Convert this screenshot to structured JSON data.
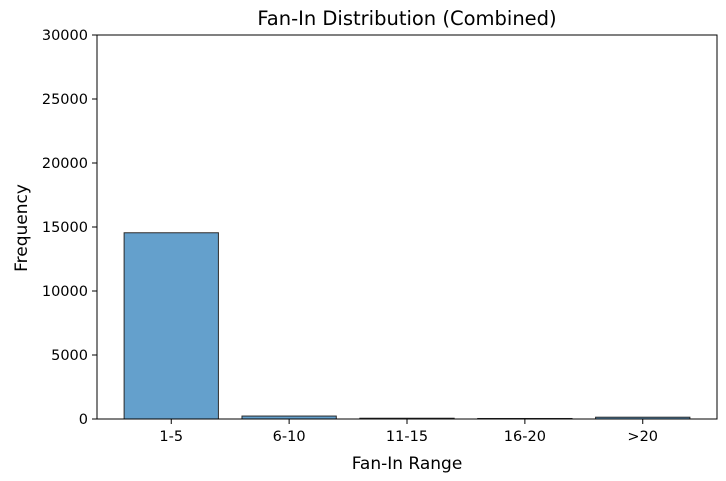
{
  "chart_data": {
    "type": "bar",
    "title": "Fan-In Distribution (Combined)",
    "xlabel": "Fan-In Range",
    "ylabel": "Frequency",
    "categories": [
      "1-5",
      "6-10",
      "11-15",
      "16-20",
      ">20"
    ],
    "values": [
      14550,
      230,
      60,
      40,
      140
    ],
    "ylim": [
      0,
      30000
    ],
    "yticks": [
      "0",
      "5000",
      "10000",
      "15000",
      "20000",
      "25000",
      "30000"
    ],
    "grid": false,
    "legend": "none",
    "bar_color": "#64a0cc",
    "bar_edge_color": "#2a2a2a"
  }
}
